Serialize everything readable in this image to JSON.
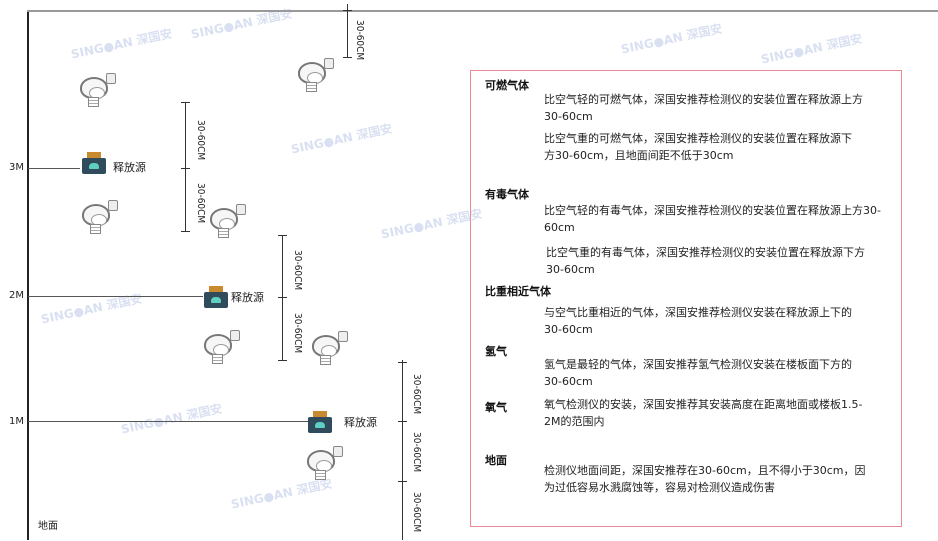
{
  "levels": {
    "m3": "3M",
    "m2": "2M",
    "m1": "1M",
    "ground": "地面"
  },
  "source_label": "释放源",
  "dimension_label": "30-60CM",
  "watermark": "SINGOAN 深国安",
  "legend": {
    "combustible": {
      "title": "可燃气体",
      "lighter": "比空气轻的可燃气体，深国安推荐检测仪的安装位置在释放源上方30-60cm",
      "heavier": "比空气重的可燃气体，深国安推荐检测仪的安装位置在释放源下方30-60cm，且地面间距不低于30cm"
    },
    "toxic": {
      "title": "有毒气体",
      "lighter": "比空气轻的有毒气体，深国安推荐检测仪的安装位置在释放源上方30-60cm",
      "heavier": "比空气重的有毒气体，深国安推荐检测仪的安装位置在释放源下方30-60cm"
    },
    "similar": {
      "title": "比重相近气体",
      "text": "与空气比重相近的气体，深国安推荐检测仪安装在释放源上下的30-60cm"
    },
    "hydrogen": {
      "title": "氢气",
      "text": "氢气是最轻的气体，深国安推荐氢气检测仪安装在楼板面下方的30-60cm"
    },
    "oxygen": {
      "title": "氧气",
      "text": "氧气检测仪的安装，深国安推荐其安装高度在距离地面或楼板1.5-2M的范围内"
    },
    "ground": {
      "title": "地面",
      "text": "检测仪地面间距，深国安推荐在30-60cm，且不得小于30cm，因为过低容易水溅腐蚀等，容易对检测仪造成伤害"
    }
  }
}
